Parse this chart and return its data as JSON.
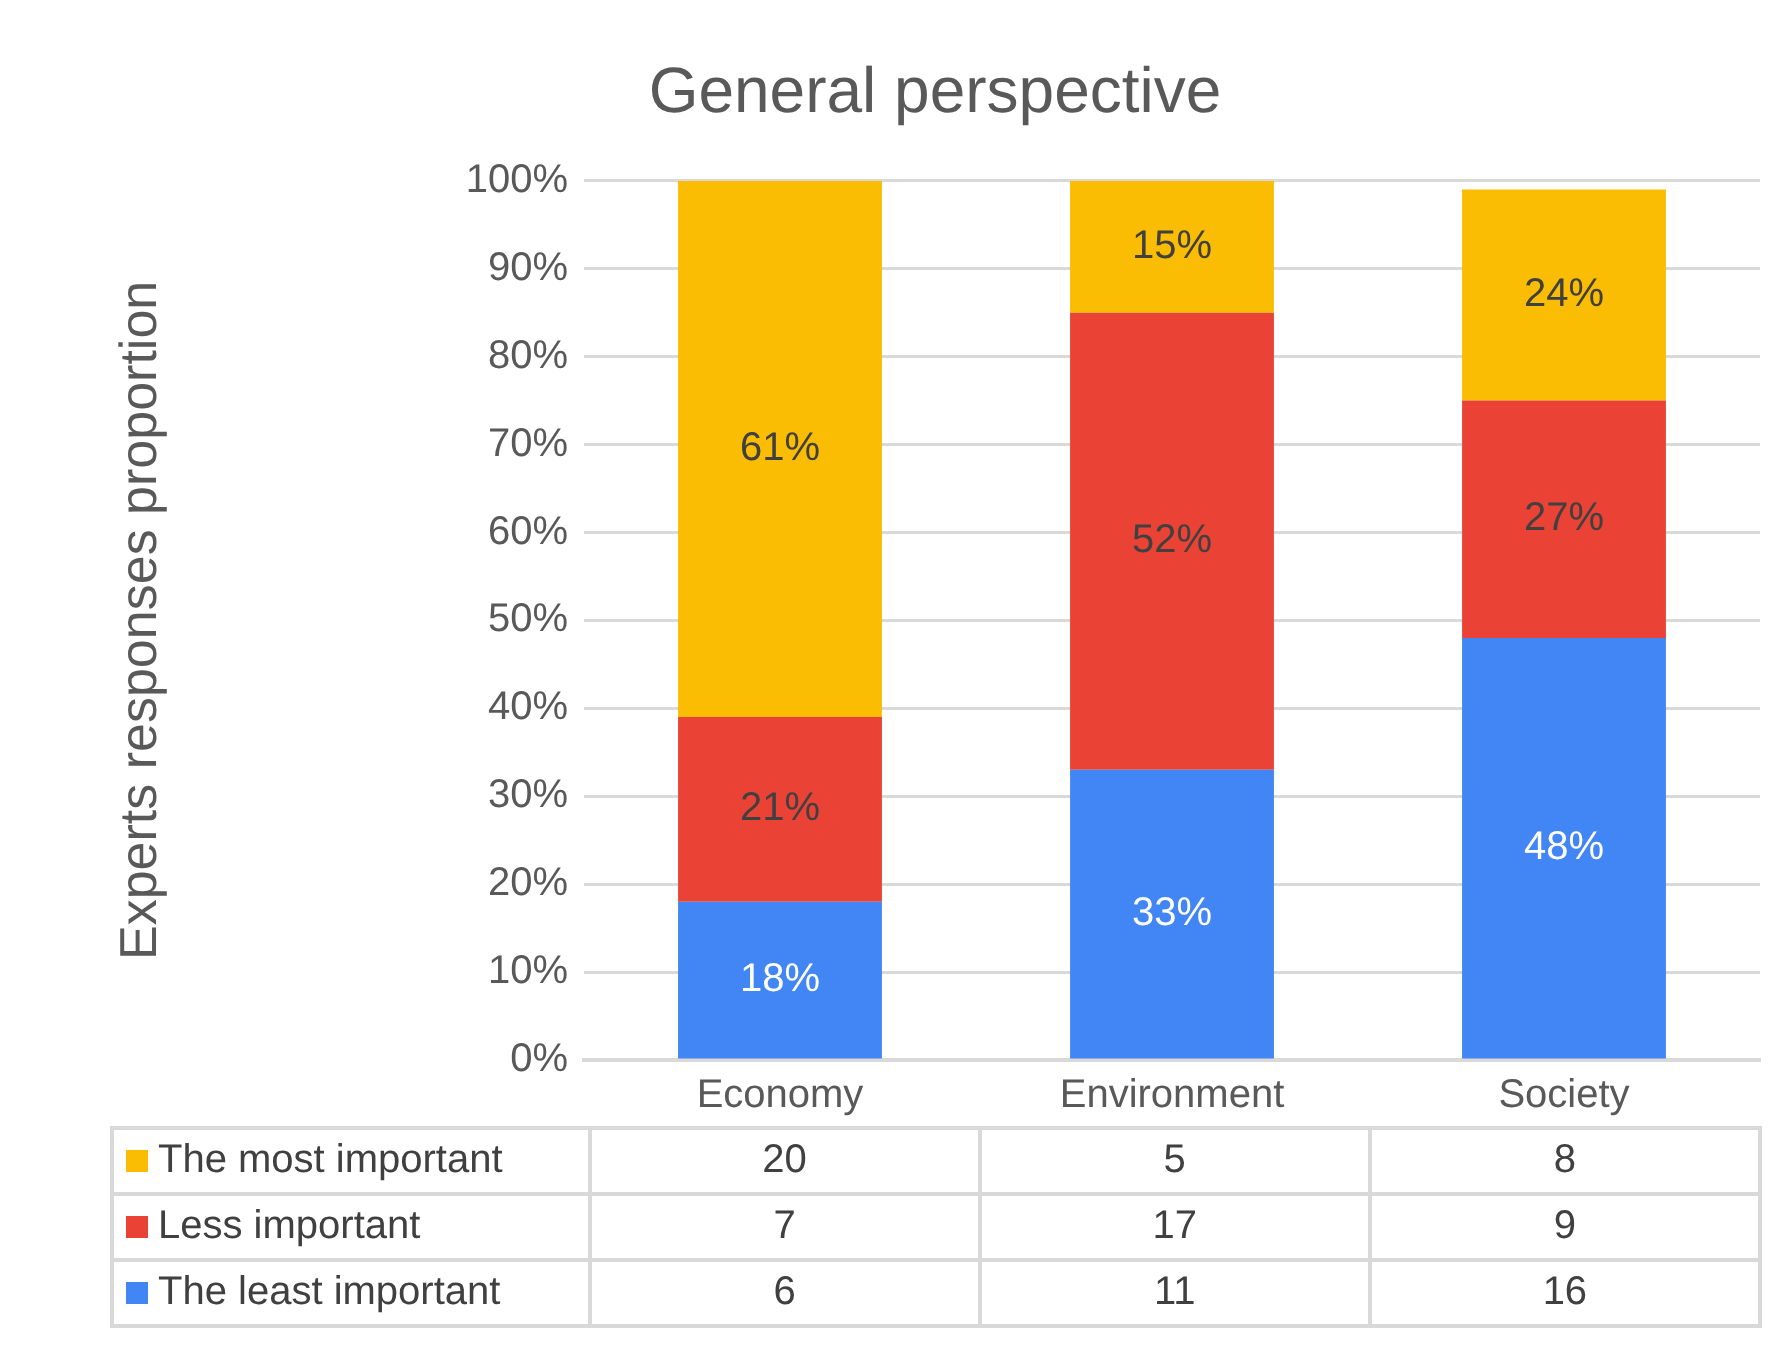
{
  "chart_data": [
    {
      "type": "bar",
      "title": "General perspective",
      "ylabel": "Experts responses proportion",
      "categories": [
        "Economy",
        "Environment",
        "Society"
      ],
      "stacked": true,
      "grid": "y",
      "legend": false,
      "series": [
        {
          "color": "#4285f4",
          "values": [
            18,
            33,
            48
          ],
          "value_labels": [
            "18%",
            "33%",
            "48%"
          ]
        },
        {
          "color": "#ea4335",
          "values": [
            21,
            52,
            27
          ],
          "value_labels": [
            "21%",
            "52%",
            "27%"
          ]
        },
        {
          "color": "#fbbc04",
          "values": [
            61,
            15,
            24
          ],
          "value_labels": [
            "61%",
            "15%",
            "24%"
          ]
        }
      ],
      "ylim": [
        0,
        100
      ],
      "yticks": [
        {
          "value": 0,
          "label": "0%"
        },
        {
          "value": 10,
          "label": "10%"
        },
        {
          "value": 20,
          "label": "20%"
        },
        {
          "value": 30,
          "label": "30%"
        },
        {
          "value": 40,
          "label": "40%"
        },
        {
          "value": 50,
          "label": "50%"
        },
        {
          "value": 60,
          "label": "60%"
        },
        {
          "value": 70,
          "label": "70%"
        },
        {
          "value": 80,
          "label": "80%"
        },
        {
          "value": 90,
          "label": "90%"
        },
        {
          "value": 100,
          "label": "100%"
        }
      ]
    },
    {
      "type": "other",
      "series": [
        {
          "name": "The most important",
          "color": "#fbbc04"
        },
        {
          "name": "Less important",
          "color": "#ea4335"
        },
        {
          "name": "The least important",
          "color": "#4285f4"
        }
      ],
      "annotations": [
        "20",
        "5",
        "8",
        "7",
        "17",
        "9",
        "6",
        "11",
        "16"
      ]
    }
  ]
}
